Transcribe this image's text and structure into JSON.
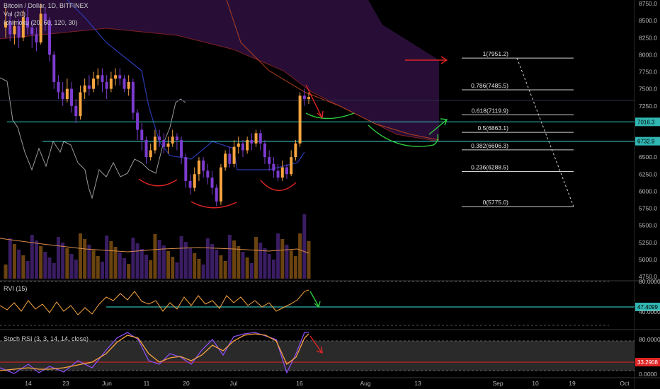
{
  "legend": {
    "title": "Bitcoin / Dollar, 1D, BITFINEX",
    "vol": "Vol (20)",
    "ichimoku": "Ichimoku (20, 60, 120, 30)",
    "rvi": "RVI (15)",
    "stoch": "Stoch RSI (3, 3, 14, 14, close)"
  },
  "chart_data": {
    "type": "candlestick",
    "price_axis": {
      "ylim": [
        4750,
        8750
      ],
      "ticks": [
        "8750.0",
        "8500.0",
        "8250.0",
        "8000.0",
        "7750.0",
        "7500.0",
        "7250.0",
        "7000.0",
        "6750.0",
        "6500.0",
        "6250.0",
        "6000.0",
        "5750.0",
        "5500.0",
        "5250.0",
        "5000.0",
        "4750.0"
      ]
    },
    "rvi_axis": {
      "ticks": [
        "80.0000",
        "40.0000"
      ]
    },
    "stoch_axis": {
      "ticks": [
        "80.0000",
        "0.0000"
      ]
    },
    "x_ticks": [
      "14",
      "23",
      "Jun",
      "11",
      "20",
      "Jul",
      "16",
      "Aug",
      "13",
      "Sep",
      "10",
      "19",
      "Oct"
    ],
    "price_tags": [
      {
        "value": "7016.3",
        "color": "#31b6b3"
      },
      {
        "value": "6732.9",
        "color": "#31b6b3"
      },
      {
        "value": "47.4099",
        "color": "#31b6b3"
      },
      {
        "value": "33.2908",
        "color": "#e02424"
      }
    ],
    "fib_levels": [
      {
        "ratio": 1,
        "price": 7951.2,
        "label": "1(7951.2)"
      },
      {
        "ratio": 0.786,
        "price": 7485.5,
        "label": "0.786(7485.5)"
      },
      {
        "ratio": 0.618,
        "price": 7119.9,
        "label": "0.618(7119.9)"
      },
      {
        "ratio": 0.5,
        "price": 6863.1,
        "label": "0.5(6863.1)"
      },
      {
        "ratio": 0.382,
        "price": 6606.3,
        "label": "0.382(6606.3)"
      },
      {
        "ratio": 0.236,
        "price": 6288.5,
        "label": "0.236(6288.5)"
      },
      {
        "ratio": 0,
        "price": 5775.0,
        "label": "0(5775.0)"
      }
    ],
    "horizontal_lines": [
      7016.3,
      6732.9
    ],
    "candles": [
      [
        8400,
        8480,
        8700,
        8250
      ],
      [
        8480,
        8300,
        8600,
        8200
      ],
      [
        8300,
        8420,
        8500,
        8150
      ],
      [
        8420,
        8250,
        8520,
        8100
      ],
      [
        8250,
        8550,
        8650,
        8200
      ],
      [
        8550,
        8400,
        8700,
        8300
      ],
      [
        8400,
        8300,
        8500,
        8100
      ],
      [
        8300,
        8180,
        8400,
        8050
      ],
      [
        8180,
        8600,
        8750,
        8150
      ],
      [
        8600,
        8500,
        8700,
        8350
      ],
      [
        8500,
        8000,
        8550,
        7900
      ],
      [
        8000,
        7600,
        8050,
        7500
      ],
      [
        7600,
        7450,
        7700,
        7350
      ],
      [
        7450,
        7350,
        7600,
        7250
      ],
      [
        7350,
        7500,
        7650,
        7300
      ],
      [
        7500,
        7250,
        7600,
        7150
      ],
      [
        7250,
        7100,
        7350,
        7000
      ],
      [
        7100,
        7450,
        7550,
        7050
      ],
      [
        7450,
        7550,
        7650,
        7350
      ],
      [
        7550,
        7500,
        7700,
        7400
      ],
      [
        7500,
        7650,
        7750,
        7450
      ],
      [
        7650,
        7700,
        7800,
        7550
      ],
      [
        7700,
        7600,
        7800,
        7450
      ],
      [
        7600,
        7500,
        7700,
        7350
      ],
      [
        7500,
        7650,
        7750,
        7450
      ],
      [
        7650,
        7700,
        7800,
        7550
      ],
      [
        7700,
        7650,
        7800,
        7550
      ],
      [
        7650,
        7500,
        7700,
        7450
      ],
      [
        7500,
        7600,
        7700,
        7400
      ],
      [
        7600,
        7150,
        7650,
        7050
      ],
      [
        7150,
        6900,
        7200,
        6750
      ],
      [
        6900,
        6750,
        7000,
        6600
      ],
      [
        6750,
        6500,
        6800,
        6400
      ],
      [
        6500,
        6600,
        6700,
        6450
      ],
      [
        6600,
        6800,
        6900,
        6550
      ],
      [
        6800,
        6750,
        6900,
        6650
      ],
      [
        6750,
        6650,
        6850,
        6550
      ],
      [
        6650,
        6700,
        6800,
        6550
      ],
      [
        6700,
        6800,
        6900,
        6650
      ],
      [
        6800,
        6750,
        6850,
        6600
      ],
      [
        6750,
        6500,
        6800,
        6400
      ],
      [
        6500,
        6150,
        6550,
        6050
      ],
      [
        6150,
        6050,
        6250,
        5950
      ],
      [
        6050,
        6250,
        6350,
        6000
      ],
      [
        6250,
        6450,
        6500,
        6150
      ],
      [
        6450,
        6300,
        6500,
        6200
      ],
      [
        6300,
        6200,
        6400,
        6100
      ],
      [
        6200,
        6050,
        6300,
        5950
      ],
      [
        6050,
        5850,
        6100,
        5780
      ],
      [
        5850,
        6350,
        6400,
        5800
      ],
      [
        6350,
        6550,
        6600,
        6300
      ],
      [
        6550,
        6400,
        6650,
        6350
      ],
      [
        6400,
        6650,
        6750,
        6350
      ],
      [
        6650,
        6700,
        6800,
        6550
      ],
      [
        6700,
        6600,
        6750,
        6500
      ],
      [
        6600,
        6750,
        6800,
        6550
      ],
      [
        6750,
        6700,
        6850,
        6600
      ],
      [
        6700,
        6850,
        6900,
        6650
      ],
      [
        6850,
        6700,
        6900,
        6600
      ],
      [
        6700,
        6500,
        6750,
        6400
      ],
      [
        6500,
        6400,
        6600,
        6300
      ],
      [
        6400,
        6300,
        6500,
        6200
      ],
      [
        6300,
        6200,
        6400,
        6150
      ],
      [
        6200,
        6350,
        6450,
        6150
      ],
      [
        6350,
        6250,
        6400,
        6180
      ],
      [
        6250,
        6500,
        6600,
        6220
      ],
      [
        6500,
        6700,
        6750,
        6450
      ],
      [
        6700,
        7400,
        7450,
        6650
      ],
      [
        7400,
        7350,
        7500,
        7250
      ],
      [
        7350,
        7380,
        7450,
        7280
      ]
    ]
  }
}
